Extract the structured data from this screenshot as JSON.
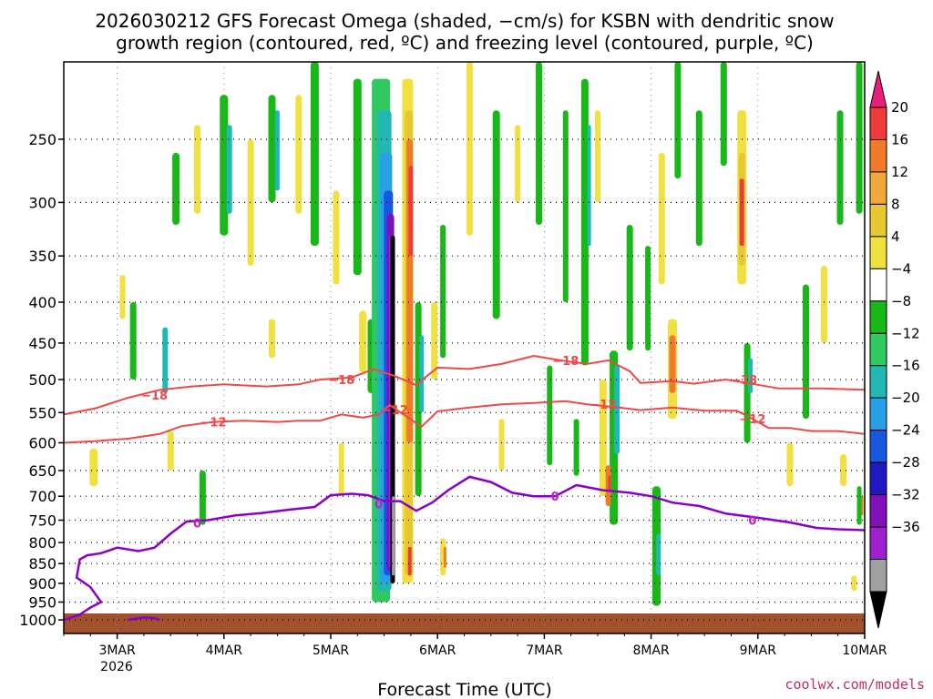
{
  "chart_data": {
    "type": "heatmap",
    "title_lines": [
      "2026030212 GFS Forecast Omega (shaded, −cm/s) for KSBN with dendritic snow",
      "growth region (contoured, red, ºC) and freezing level (contoured, purple, ºC)"
    ],
    "xlabel": "Forecast Time (UTC)",
    "x_ticks": [
      "3MAR",
      "4MAR",
      "5MAR",
      "6MAR",
      "7MAR",
      "8MAR",
      "9MAR",
      "10MAR"
    ],
    "x_tick_year": "2026",
    "x_range_days": [
      2.5,
      10.0
    ],
    "y_ticks": [
      250,
      300,
      350,
      400,
      450,
      500,
      550,
      600,
      650,
      700,
      750,
      800,
      850,
      900,
      950,
      1000
    ],
    "y_range_hpa": [
      200,
      1040
    ],
    "grid": true,
    "colorbar": {
      "tick_labels": [
        "20",
        "16",
        "12",
        "8",
        "4",
        "−4",
        "−8",
        "−12",
        "−16",
        "−20",
        "−24",
        "−28",
        "−32",
        "−36"
      ],
      "colors": [
        "#e8207a",
        "#f03b3b",
        "#f07a28",
        "#f0a83a",
        "#e8c830",
        "#f0e040",
        "#ffffff",
        "#18b818",
        "#30c860",
        "#20b8b0",
        "#28a0e8",
        "#1858e0",
        "#2018c0",
        "#8010b8",
        "#a020d0",
        "#a0a0a0",
        "#000000"
      ]
    },
    "contour_labels": {
      "dgz_upper": "−18",
      "dgz_lower": "−12",
      "freezing": "0"
    },
    "series": [
      {
        "name": "−18",
        "color": "#f04848",
        "points": [
          [
            2.5,
            553
          ],
          [
            2.8,
            543
          ],
          [
            3.1,
            527
          ],
          [
            3.4,
            515
          ],
          [
            3.7,
            510
          ],
          [
            4.0,
            507
          ],
          [
            4.4,
            510
          ],
          [
            4.7,
            507
          ],
          [
            4.9,
            500
          ],
          [
            5.2,
            497
          ],
          [
            5.4,
            485
          ],
          [
            5.6,
            495
          ],
          [
            5.8,
            508
          ],
          [
            5.9,
            495
          ],
          [
            6.0,
            483
          ],
          [
            6.3,
            485
          ],
          [
            6.6,
            478
          ],
          [
            6.9,
            467
          ],
          [
            7.2,
            474
          ],
          [
            7.4,
            478
          ],
          [
            7.6,
            473
          ],
          [
            7.8,
            488
          ],
          [
            7.9,
            505
          ],
          [
            8.2,
            502
          ],
          [
            8.4,
            506
          ],
          [
            8.7,
            500
          ],
          [
            8.9,
            505
          ],
          [
            9.2,
            513
          ],
          [
            9.6,
            513
          ],
          [
            10.0,
            515
          ]
        ]
      },
      {
        "name": "−12",
        "color": "#f04848",
        "points": [
          [
            2.5,
            600
          ],
          [
            2.8,
            597
          ],
          [
            3.1,
            593
          ],
          [
            3.4,
            585
          ],
          [
            3.6,
            572
          ],
          [
            3.9,
            565
          ],
          [
            4.2,
            563
          ],
          [
            4.5,
            565
          ],
          [
            4.7,
            563
          ],
          [
            4.9,
            563
          ],
          [
            5.1,
            553
          ],
          [
            5.3,
            558
          ],
          [
            5.45,
            553
          ],
          [
            5.55,
            538
          ],
          [
            5.7,
            555
          ],
          [
            5.85,
            573
          ],
          [
            6.0,
            548
          ],
          [
            6.3,
            542
          ],
          [
            6.6,
            537
          ],
          [
            6.9,
            535
          ],
          [
            7.2,
            532
          ],
          [
            7.4,
            537
          ],
          [
            7.7,
            542
          ],
          [
            7.9,
            546
          ],
          [
            8.2,
            542
          ],
          [
            8.5,
            547
          ],
          [
            8.8,
            547
          ],
          [
            8.9,
            555
          ],
          [
            9.1,
            575
          ],
          [
            9.3,
            575
          ],
          [
            9.5,
            580
          ],
          [
            9.75,
            580
          ],
          [
            10.0,
            585
          ]
        ]
      },
      {
        "name": "0",
        "color": "#8b00c8",
        "points": [
          [
            2.5,
            1000
          ],
          [
            2.65,
            985
          ],
          [
            2.75,
            965
          ],
          [
            2.85,
            950
          ],
          [
            2.75,
            910
          ],
          [
            2.62,
            885
          ],
          [
            2.65,
            840
          ],
          [
            2.72,
            830
          ],
          [
            2.85,
            825
          ],
          [
            3.0,
            812
          ],
          [
            3.2,
            820
          ],
          [
            3.35,
            812
          ],
          [
            3.5,
            780
          ],
          [
            3.65,
            753
          ],
          [
            3.85,
            750
          ],
          [
            4.1,
            740
          ],
          [
            4.35,
            735
          ],
          [
            4.6,
            728
          ],
          [
            4.85,
            722
          ],
          [
            5.0,
            698
          ],
          [
            5.2,
            695
          ],
          [
            5.35,
            698
          ],
          [
            5.5,
            710
          ],
          [
            5.65,
            710
          ],
          [
            5.8,
            730
          ],
          [
            5.95,
            713
          ],
          [
            6.1,
            688
          ],
          [
            6.3,
            662
          ],
          [
            6.5,
            672
          ],
          [
            6.7,
            693
          ],
          [
            6.9,
            700
          ],
          [
            7.1,
            700
          ],
          [
            7.3,
            678
          ],
          [
            7.55,
            688
          ],
          [
            7.8,
            693
          ],
          [
            8.0,
            700
          ],
          [
            8.2,
            713
          ],
          [
            8.45,
            720
          ],
          [
            8.7,
            736
          ],
          [
            9.0,
            745
          ],
          [
            9.3,
            755
          ],
          [
            9.55,
            767
          ],
          [
            9.75,
            770
          ],
          [
            10.0,
            772
          ]
        ]
      },
      {
        "name": "0",
        "color": "#8b00c8",
        "points": [
          [
            3.1,
            1000
          ],
          [
            3.25,
            993
          ],
          [
            3.35,
            995
          ],
          [
            3.4,
            1000
          ]
        ]
      }
    ]
  }
}
